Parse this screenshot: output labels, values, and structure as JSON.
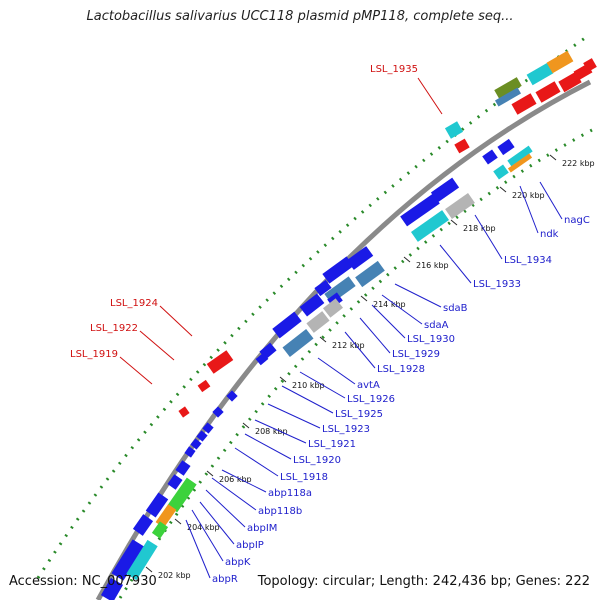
{
  "header": {
    "title": "Lactobacillus salivarius UCC118 plasmid pMP118, complete seq..."
  },
  "footer": {
    "accession": "Accession: NC_007930",
    "summary": "Topology: circular; Length: 242,436 bp; Genes: 222"
  },
  "colors": {
    "backbone": "#8a8a8a",
    "forward_cds": "#1a1ae6",
    "label_blue": "#2020cc",
    "label_red": "#d01010",
    "gc_dots": "#2a8a2a",
    "steelblue": "#4682b4",
    "cyan": "#20c8d0",
    "orange": "#f0961e",
    "red": "#e81818",
    "green": "#3cd23c",
    "olive": "#6b8e23",
    "grey": "#b4b4b4"
  },
  "ticks": [
    "202 kbp",
    "204 kbp",
    "206 kbp",
    "208 kbp",
    "210 kbp",
    "212 kbp",
    "214 kbp",
    "216 kbp",
    "218 kbp",
    "220 kbp",
    "222 kbp"
  ],
  "labels": {
    "blue": [
      "nagC",
      "ndk",
      "LSL_1934",
      "LSL_1933",
      "sdaB",
      "sdaA",
      "LSL_1930",
      "LSL_1929",
      "LSL_1928",
      "avtA",
      "LSL_1926",
      "LSL_1925",
      "LSL_1923",
      "LSL_1921",
      "LSL_1920",
      "LSL_1918",
      "abp118a",
      "abp118b",
      "abpIM",
      "abpIP",
      "abpK",
      "abpR"
    ],
    "red": [
      "LSL_1935",
      "LSL_1924",
      "LSL_1922",
      "LSL_1919"
    ]
  }
}
